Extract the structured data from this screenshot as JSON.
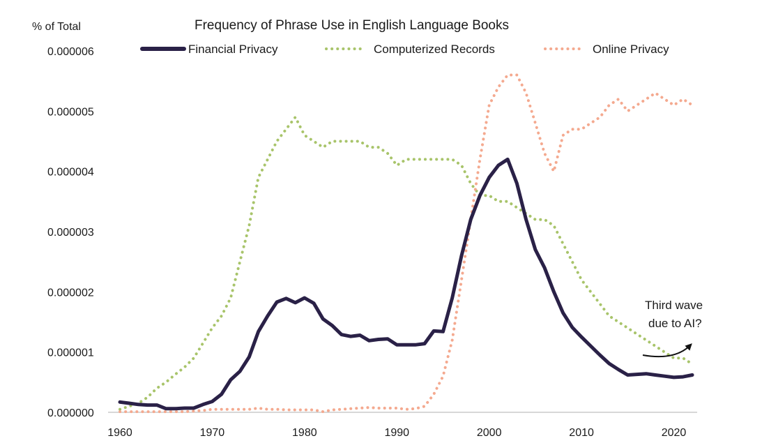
{
  "chart_data": {
    "type": "line",
    "title": "Frequency of Phrase Use in English Language Books",
    "ylabel": "% of Total",
    "xlabel": "",
    "xlim": [
      1960,
      2022
    ],
    "ylim": [
      0,
      6e-06
    ],
    "x_ticks": [
      "1960",
      "1970",
      "1980",
      "1990",
      "2000",
      "2010",
      "2020"
    ],
    "y_ticks": [
      "0.000000",
      "0.000001",
      "0.000002",
      "0.000003",
      "0.000004",
      "0.000005",
      "0.000006"
    ],
    "grid": false,
    "legend_position": "top",
    "annotation": {
      "lines": [
        "Third wave",
        "due to AI?"
      ],
      "arrow": true
    },
    "series": [
      {
        "name": "Financial Privacy",
        "style": "solid",
        "color": "#2a2147",
        "x": [
          1960,
          1961,
          1962,
          1963,
          1964,
          1965,
          1966,
          1967,
          1968,
          1969,
          1970,
          1971,
          1972,
          1973,
          1974,
          1975,
          1976,
          1977,
          1978,
          1979,
          1980,
          1981,
          1982,
          1983,
          1984,
          1985,
          1986,
          1987,
          1988,
          1989,
          1990,
          1991,
          1992,
          1993,
          1994,
          1995,
          1996,
          1997,
          1998,
          1999,
          2000,
          2001,
          2002,
          2003,
          2004,
          2005,
          2006,
          2007,
          2008,
          2009,
          2010,
          2011,
          2012,
          2013,
          2014,
          2015,
          2016,
          2017,
          2018,
          2019,
          2020,
          2021,
          2022
        ],
        "y": [
          1.7e-07,
          1.5e-07,
          1.3e-07,
          1.2e-07,
          1.2e-07,
          6e-08,
          6e-08,
          7e-08,
          7e-08,
          1.3e-07,
          1.8e-07,
          3e-07,
          5.4e-07,
          6.8e-07,
          9.2e-07,
          1.34e-06,
          1.6e-06,
          1.83e-06,
          1.89e-06,
          1.82e-06,
          1.9e-06,
          1.81e-06,
          1.55e-06,
          1.44e-06,
          1.29e-06,
          1.26e-06,
          1.28e-06,
          1.19e-06,
          1.21e-06,
          1.22e-06,
          1.12e-06,
          1.12e-06,
          1.12e-06,
          1.14e-06,
          1.35e-06,
          1.34e-06,
          1.9e-06,
          2.6e-06,
          3.2e-06,
          3.6e-06,
          3.9e-06,
          4.1e-06,
          4.2e-06,
          3.8e-06,
          3.2e-06,
          2.7e-06,
          2.4e-06,
          2e-06,
          1.65e-06,
          1.41e-06,
          1.25e-06,
          1.1e-06,
          9.5e-07,
          8.1e-07,
          7.1e-07,
          6.2e-07,
          6.3e-07,
          6.4e-07,
          6.2e-07,
          6e-07,
          5.8e-07,
          5.9e-07,
          6.2e-07
        ]
      },
      {
        "name": "Computerized Records",
        "style": "dotted",
        "color": "#a8c46a",
        "x": [
          1960,
          1961,
          1962,
          1963,
          1964,
          1965,
          1966,
          1967,
          1968,
          1969,
          1970,
          1971,
          1972,
          1973,
          1974,
          1975,
          1976,
          1977,
          1978,
          1979,
          1980,
          1981,
          1982,
          1983,
          1984,
          1985,
          1986,
          1987,
          1988,
          1989,
          1990,
          1991,
          1992,
          1993,
          1994,
          1995,
          1996,
          1997,
          1998,
          1999,
          2000,
          2001,
          2002,
          2003,
          2004,
          2005,
          2006,
          2007,
          2008,
          2009,
          2010,
          2011,
          2012,
          2013,
          2014,
          2015,
          2016,
          2017,
          2018,
          2019,
          2020,
          2021,
          2022
        ],
        "y": [
          5e-08,
          1e-07,
          1.5e-07,
          2.5e-07,
          4e-07,
          5e-07,
          6.3e-07,
          7.5e-07,
          9e-07,
          1.15e-06,
          1.4e-06,
          1.6e-06,
          1.9e-06,
          2.5e-06,
          3.1e-06,
          3.9e-06,
          4.2e-06,
          4.5e-06,
          4.7e-06,
          4.9e-06,
          4.6e-06,
          4.5e-06,
          4.4e-06,
          4.5e-06,
          4.5e-06,
          4.5e-06,
          4.5e-06,
          4.4e-06,
          4.4e-06,
          4.3e-06,
          4.1e-06,
          4.2e-06,
          4.2e-06,
          4.2e-06,
          4.2e-06,
          4.2e-06,
          4.2e-06,
          4.1e-06,
          3.8e-06,
          3.6e-06,
          3.6e-06,
          3.5e-06,
          3.5e-06,
          3.4e-06,
          3.3e-06,
          3.2e-06,
          3.2e-06,
          3.1e-06,
          2.8e-06,
          2.5e-06,
          2.2e-06,
          2e-06,
          1.8e-06,
          1.6e-06,
          1.5e-06,
          1.4e-06,
          1.3e-06,
          1.2e-06,
          1.1e-06,
          1e-06,
          9e-07,
          9e-07,
          8e-07
        ]
      },
      {
        "name": "Online Privacy",
        "style": "dotted",
        "color": "#f4a98f",
        "x": [
          1960,
          1961,
          1962,
          1963,
          1964,
          1965,
          1966,
          1967,
          1968,
          1969,
          1970,
          1971,
          1972,
          1973,
          1974,
          1975,
          1976,
          1977,
          1978,
          1979,
          1980,
          1981,
          1982,
          1983,
          1984,
          1985,
          1986,
          1987,
          1988,
          1989,
          1990,
          1991,
          1992,
          1993,
          1994,
          1995,
          1996,
          1997,
          1998,
          1999,
          2000,
          2001,
          2002,
          2003,
          2004,
          2005,
          2006,
          2007,
          2008,
          2009,
          2010,
          2011,
          2012,
          2013,
          2014,
          2015,
          2016,
          2017,
          2018,
          2019,
          2020,
          2021,
          2022
        ],
        "y": [
          1e-08,
          1e-08,
          1e-08,
          1e-08,
          1e-08,
          1e-08,
          1e-08,
          1e-08,
          2e-08,
          3e-08,
          5e-08,
          5e-08,
          5e-08,
          5e-08,
          5e-08,
          7e-08,
          5e-08,
          5e-08,
          4e-08,
          4e-08,
          4e-08,
          4e-08,
          1e-08,
          4e-08,
          5e-08,
          6e-08,
          7e-08,
          8e-08,
          7e-08,
          7e-08,
          7e-08,
          5e-08,
          6e-08,
          1e-07,
          3e-07,
          6e-07,
          1.2e-06,
          2.2e-06,
          3.2e-06,
          4.2e-06,
          5.1e-06,
          5.4e-06,
          5.6e-06,
          5.6e-06,
          5.3e-06,
          4.8e-06,
          4.3e-06,
          4e-06,
          4.6e-06,
          4.7e-06,
          4.7e-06,
          4.8e-06,
          4.9e-06,
          5.1e-06,
          5.2e-06,
          5e-06,
          5.1e-06,
          5.2e-06,
          5.3e-06,
          5.2e-06,
          5.1e-06,
          5.2e-06,
          5.1e-06
        ]
      }
    ]
  }
}
